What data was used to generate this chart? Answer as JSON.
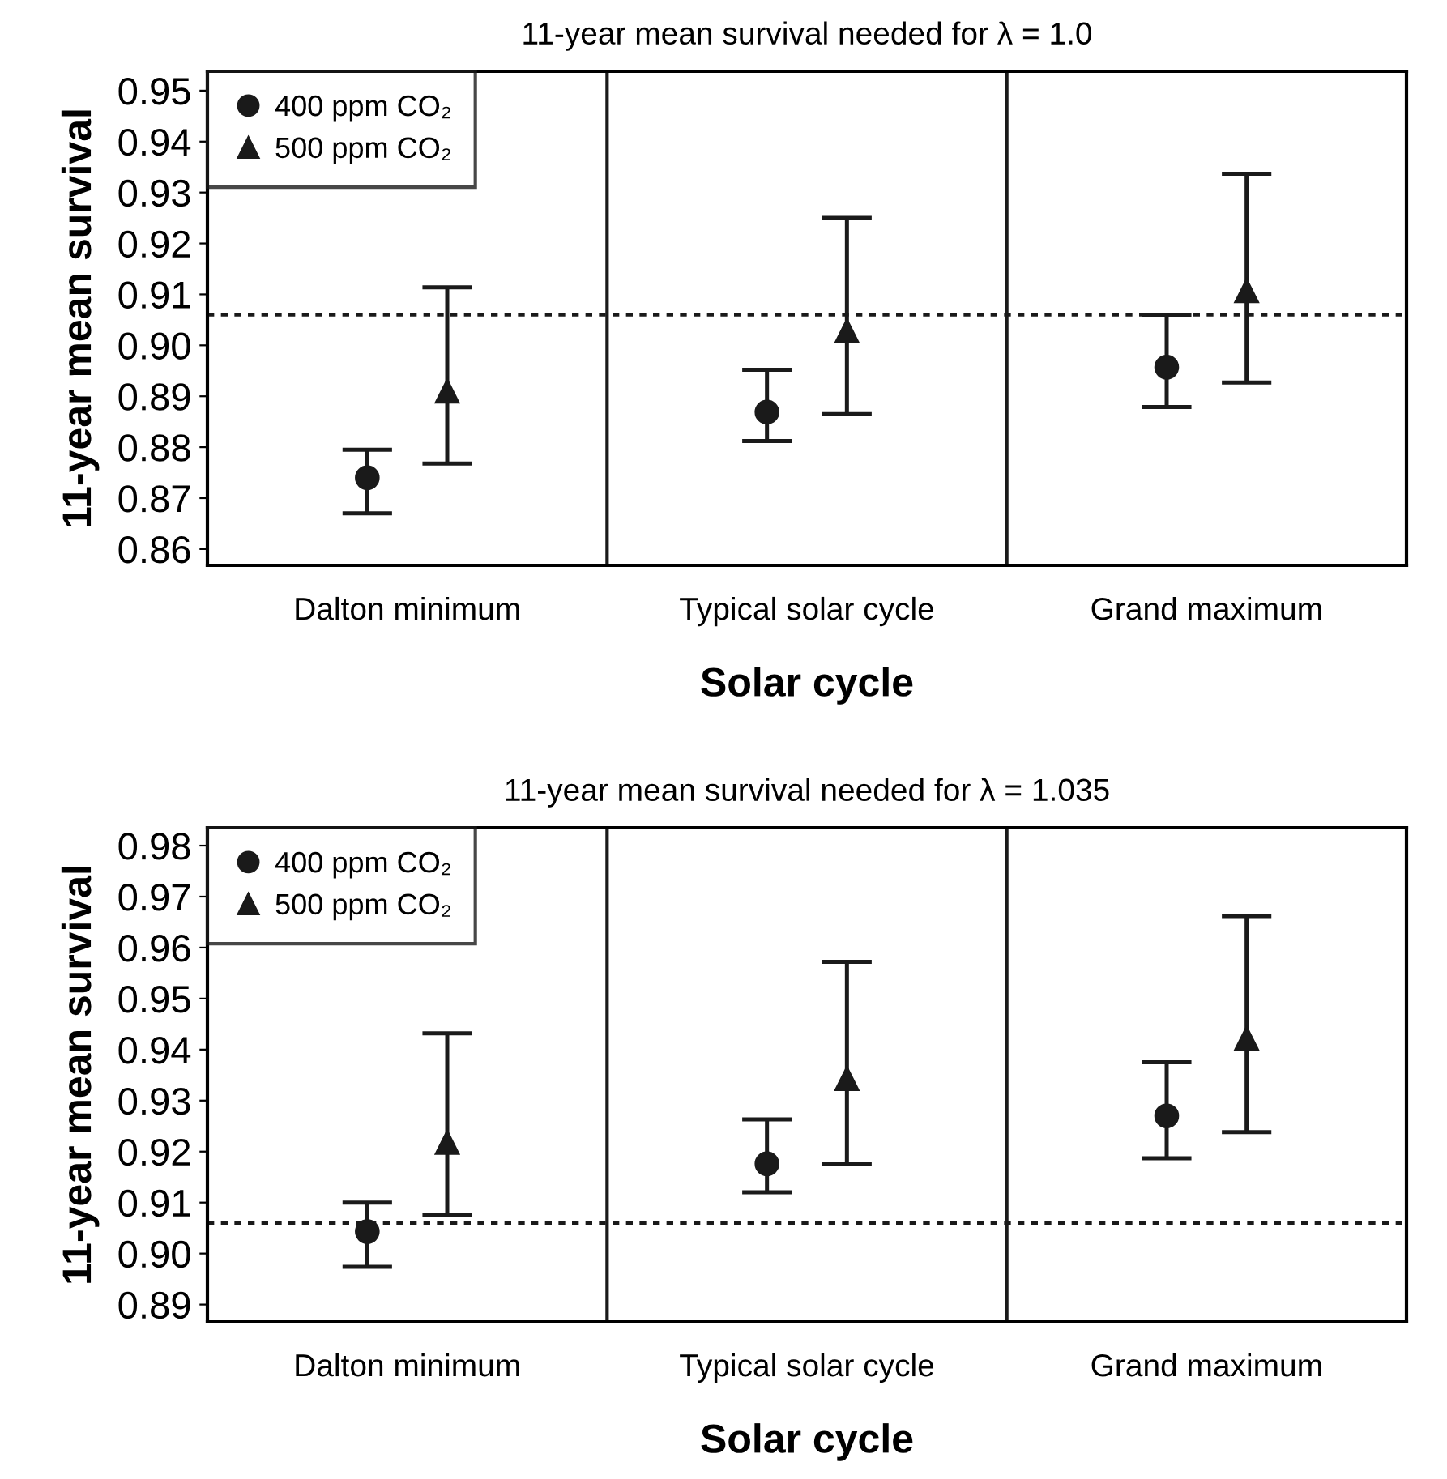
{
  "chart_data": [
    {
      "type": "scatter",
      "title": "11-year mean survival needed for λ = 1.0",
      "xlabel": "Solar cycle",
      "ylabel": "11-year mean survival",
      "categories": [
        "Dalton minimum",
        "Typical solar cycle",
        "Grand maximum"
      ],
      "series": [
        {
          "name": "400 ppm CO₂",
          "color": "#1a1a1a",
          "marker": "circle",
          "values": [
            0.874,
            0.8869,
            0.8957
          ],
          "errors": [
            [
              0.867,
              0.8795
            ],
            [
              0.8812,
              0.8952
            ],
            [
              0.8879,
              0.906
            ]
          ]
        },
        {
          "name": "500 ppm CO₂",
          "color": "#1a1a1a",
          "marker": "triangle",
          "values": [
            0.891,
            0.9028,
            0.9107
          ],
          "errors": [
            [
              0.8768,
              0.9114
            ],
            [
              0.8865,
              0.925
            ],
            [
              0.8927,
              0.9337
            ]
          ]
        }
      ],
      "ylim": [
        0.8568,
        0.9538
      ],
      "yticks": [
        0.86,
        0.87,
        0.88,
        0.89,
        {
          "value": 0.9,
          "label": "0.90"
        },
        0.91,
        0.92,
        0.93,
        0.94,
        0.95
      ],
      "ref_lines": [
        {
          "axis": "y",
          "value": 0.906,
          "color": "#1a1a1a",
          "line_style": "dotted"
        }
      ],
      "grid": false,
      "legend": "top left"
    },
    {
      "type": "scatter",
      "title": "11-year mean survival needed for λ = 1.035",
      "xlabel": "Solar cycle",
      "ylabel": "11-year mean survival",
      "categories": [
        "Dalton minimum",
        "Typical solar cycle",
        "Grand maximum"
      ],
      "series": [
        {
          "name": "400 ppm CO₂",
          "color": "#1a1a1a",
          "marker": "circle",
          "values": [
            0.9043,
            0.9176,
            0.927
          ],
          "errors": [
            [
              0.8974,
              0.91
            ],
            [
              0.912,
              0.9263
            ],
            [
              0.9187,
              0.9375
            ]
          ]
        },
        {
          "name": "500 ppm CO₂",
          "color": "#1a1a1a",
          "marker": "triangle",
          "values": [
            0.9218,
            0.9343,
            0.9422
          ],
          "errors": [
            [
              0.9075,
              0.9432
            ],
            [
              0.9175,
              0.9572
            ],
            [
              0.9238,
              0.9662
            ]
          ]
        }
      ],
      "ylim": [
        0.8866,
        0.9835
      ],
      "yticks": [
        0.89,
        {
          "value": 0.9,
          "label": "0.90"
        },
        0.91,
        0.92,
        0.93,
        0.94,
        0.95,
        0.96,
        0.97,
        0.98
      ],
      "ref_lines": [
        {
          "axis": "y",
          "value": 0.906,
          "color": "#1a1a1a",
          "line_style": "dotted"
        }
      ],
      "grid": false,
      "legend": "top left"
    }
  ]
}
